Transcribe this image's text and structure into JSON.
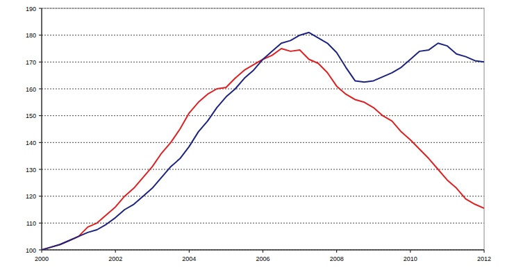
{
  "chart_data": {
    "type": "line",
    "x": [
      2000,
      2000.25,
      2000.5,
      2000.75,
      2001,
      2001.25,
      2001.5,
      2001.75,
      2002,
      2002.25,
      2002.5,
      2002.75,
      2003,
      2003.25,
      2003.5,
      2003.75,
      2004,
      2004.25,
      2004.5,
      2004.75,
      2005,
      2005.25,
      2005.5,
      2005.75,
      2006,
      2006.25,
      2006.5,
      2006.75,
      2007,
      2007.25,
      2007.5,
      2007.75,
      2008,
      2008.25,
      2008.5,
      2008.75,
      2009,
      2009.25,
      2009.5,
      2009.75,
      2010,
      2010.25,
      2010.5,
      2010.75,
      2011,
      2011.25,
      2011.5,
      2011.75,
      2012
    ],
    "series": [
      {
        "color": "#e02020",
        "values": [
          100,
          101,
          102,
          103.5,
          105,
          108.5,
          110,
          113,
          116,
          120,
          123,
          127,
          131,
          136,
          140,
          145,
          151,
          155,
          158,
          160,
          160.5,
          164,
          167,
          169,
          171,
          172.5,
          175,
          174,
          174.5,
          171,
          169.5,
          166,
          161,
          158,
          156,
          155,
          153,
          150,
          148,
          144,
          141,
          137.5,
          134,
          130,
          126,
          123,
          119,
          117,
          115.5
        ]
      },
      {
        "color": "#1c2380",
        "values": [
          100,
          101,
          102,
          103.5,
          105,
          106.5,
          107.5,
          109.5,
          112,
          115,
          117,
          120,
          123,
          127,
          131,
          134,
          138.5,
          144,
          148,
          153,
          157,
          160,
          164,
          167,
          171,
          174,
          177,
          178,
          180,
          181,
          179,
          177,
          173.5,
          168,
          163,
          162.5,
          163,
          164.5,
          166,
          168,
          171,
          174,
          174.5,
          177,
          176,
          173,
          172,
          170.5,
          170
        ]
      }
    ],
    "xlim": [
      2000,
      2012
    ],
    "xticks": [
      2000,
      2002,
      2004,
      2006,
      2008,
      2010,
      2012
    ],
    "ylim": [
      100,
      190
    ],
    "yticks": [
      100,
      110,
      120,
      130,
      140,
      150,
      160,
      170,
      180,
      190
    ],
    "grid": true
  }
}
